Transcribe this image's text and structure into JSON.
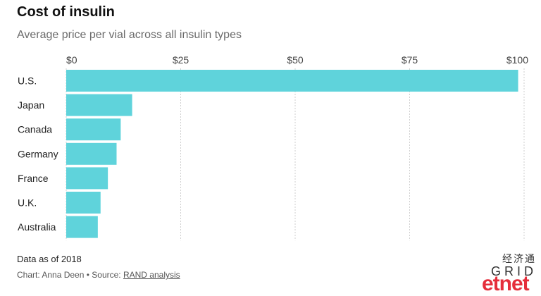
{
  "header": {
    "title": "Cost of insulin",
    "subtitle": "Average price per vial across all insulin types"
  },
  "footer": {
    "note": "Data as of 2018",
    "credit_prefix": "Chart: Anna Deen • Source: ",
    "source_link": "RAND analysis"
  },
  "branding": {
    "grid_logo": "GRID",
    "watermark_cn": "经济通",
    "watermark_en": "etnet"
  },
  "colors": {
    "bar": "#5fd3db",
    "grid": "#cfcfcf"
  },
  "chart_data": {
    "type": "bar",
    "orientation": "horizontal",
    "title": "Cost of insulin",
    "subtitle": "Average price per vial across all insulin types",
    "categories": [
      "U.S.",
      "Japan",
      "Canada",
      "Germany",
      "France",
      "U.K.",
      "Australia"
    ],
    "values": [
      98.7,
      14.4,
      11.9,
      11.0,
      9.1,
      7.5,
      6.9
    ],
    "xlim": [
      0,
      100
    ],
    "xticks": [
      0,
      25,
      50,
      75,
      100
    ],
    "xtick_labels": [
      "$0",
      "$25",
      "$50",
      "$75",
      "$100"
    ],
    "grid": true
  }
}
